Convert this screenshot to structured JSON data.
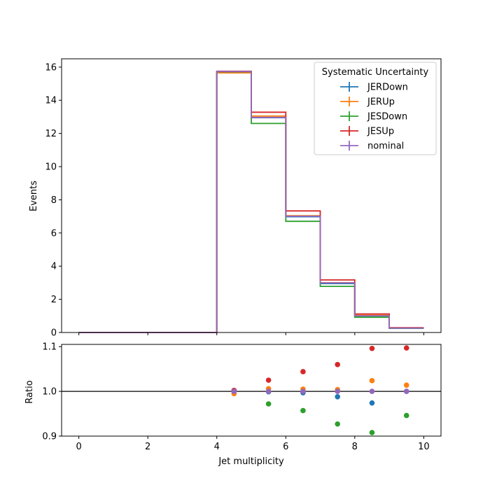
{
  "chart_data": {
    "type": "step",
    "xlabel": "Jet multiplicity",
    "bin_edges": [
      0,
      1,
      2,
      3,
      4,
      5,
      6,
      7,
      8,
      9,
      10
    ],
    "legend": {
      "title": "Systematic Uncertainty",
      "position": "top-right"
    },
    "series": [
      {
        "name": "JERDown",
        "color": "#1f77b4",
        "values": [
          0,
          0,
          0,
          0,
          15.72,
          12.95,
          6.98,
          2.95,
          0.99,
          0.26
        ]
      },
      {
        "name": "JERUp",
        "color": "#ff7f0e",
        "values": [
          0,
          0,
          0,
          0,
          15.65,
          13.05,
          7.04,
          3.0,
          1.04,
          0.265
        ]
      },
      {
        "name": "JESDown",
        "color": "#2ca02c",
        "values": [
          0,
          0,
          0,
          0,
          15.72,
          12.6,
          6.7,
          2.78,
          0.92,
          0.247
        ]
      },
      {
        "name": "JESUp",
        "color": "#d62728",
        "values": [
          0,
          0,
          0,
          0,
          15.75,
          13.28,
          7.33,
          3.17,
          1.12,
          0.287
        ]
      },
      {
        "name": "nominal",
        "color": "#9467bd",
        "values": [
          0,
          0,
          0,
          0,
          15.73,
          12.97,
          7.01,
          2.99,
          1.01,
          0.26
        ]
      }
    ],
    "top_panel": {
      "ylabel": "Events",
      "ylim": [
        0,
        16.5
      ],
      "yticks": [
        0,
        2,
        4,
        6,
        8,
        10,
        12,
        14,
        16
      ],
      "yticklabels": [
        "0",
        "2",
        "4",
        "6",
        "8",
        "10",
        "12",
        "14",
        "16"
      ]
    },
    "ratio_panel": {
      "ylabel": "Ratio",
      "ylim": [
        0.9,
        1.105
      ],
      "yticks": [
        0.9,
        1.0,
        1.1
      ],
      "yticklabels": [
        "0.9",
        "1.0",
        "1.1"
      ],
      "reference_line": 1.0,
      "x": [
        4.5,
        5.5,
        6.5,
        7.5,
        8.5,
        9.5
      ],
      "points": [
        {
          "name": "JERDown",
          "color": "#1f77b4",
          "values": [
            1.002,
            0.999,
            0.997,
            0.988,
            0.974,
            1.0
          ]
        },
        {
          "name": "JERUp",
          "color": "#ff7f0e",
          "values": [
            0.995,
            1.006,
            1.005,
            1.004,
            1.024,
            1.014
          ]
        },
        {
          "name": "JESDown",
          "color": "#2ca02c",
          "values": [
            1.001,
            0.972,
            0.957,
            0.927,
            0.908,
            0.946
          ]
        },
        {
          "name": "JESUp",
          "color": "#d62728",
          "values": [
            1.002,
            1.025,
            1.044,
            1.06,
            1.096,
            1.097
          ]
        },
        {
          "name": "nominal",
          "color": "#9467bd",
          "values": [
            1.0,
            1.0,
            1.0,
            1.0,
            1.0,
            1.0
          ]
        }
      ]
    },
    "xlim": [
      -0.5,
      10.5
    ],
    "xticks": [
      0,
      2,
      4,
      6,
      8,
      10
    ],
    "xticklabels": [
      "0",
      "2",
      "4",
      "6",
      "8",
      "10"
    ]
  }
}
